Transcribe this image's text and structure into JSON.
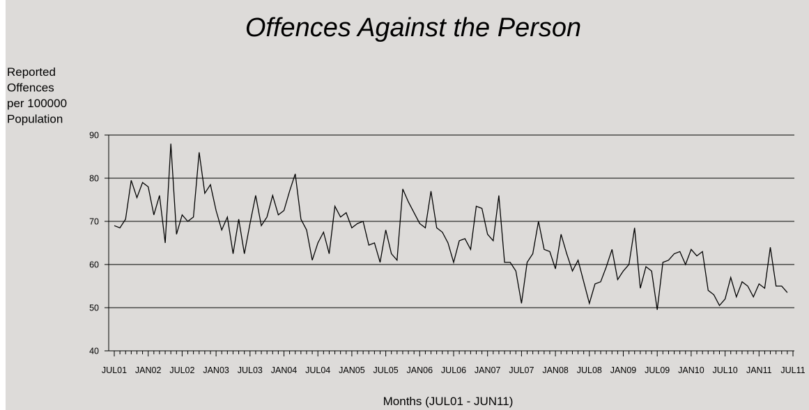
{
  "chart_data": {
    "type": "line",
    "title": "Offences Against the Person",
    "ylabel": [
      "Reported",
      "Offences",
      "per 100000",
      "Population"
    ],
    "xlabel": "Months (JUL01 - JUN11)",
    "ylim": [
      40,
      90
    ],
    "yticks": [
      40,
      50,
      60,
      70,
      80,
      90
    ],
    "grid": true,
    "x_tick_labels": [
      "JUL01",
      "JAN02",
      "JUL02",
      "JAN03",
      "JUL03",
      "JAN04",
      "JUL04",
      "JAN05",
      "JUL05",
      "JAN06",
      "JUL06",
      "JAN07",
      "JUL07",
      "JAN08",
      "JUL08",
      "JAN09",
      "JUL09",
      "JAN10",
      "JUL10",
      "JAN11",
      "JUL11"
    ],
    "colors": {
      "background": "#dddbd9",
      "line": "#000000",
      "grid": "#000000"
    },
    "series": [
      {
        "values": [
          69.0,
          68.5,
          70.5,
          79.5,
          75.5,
          79.0,
          78.0,
          71.5,
          76.0,
          65.0,
          88.0,
          67.0,
          71.5,
          70.0,
          71.0,
          86.0,
          76.5,
          78.5,
          72.5,
          68.0,
          71.0,
          62.5,
          70.5,
          62.5,
          69.5,
          76.0,
          69.0,
          71.0,
          76.0,
          71.5,
          72.5,
          77.0,
          81.0,
          70.5,
          68.0,
          61.0,
          65.0,
          67.5,
          62.5,
          73.5,
          71.0,
          72.0,
          68.5,
          69.5,
          70.0,
          64.5,
          65.0,
          60.5,
          68.0,
          62.5,
          61.0,
          77.5,
          74.5,
          72.0,
          69.5,
          68.5,
          77.0,
          68.5,
          67.5,
          65.0,
          60.5,
          65.5,
          66.0,
          63.5,
          73.5,
          73.0,
          67.0,
          65.5,
          76.0,
          60.5,
          60.5,
          58.5,
          51.0,
          60.5,
          62.5,
          70.0,
          63.5,
          63.0,
          59.0,
          67.0,
          62.5,
          58.5,
          61.0,
          56.0,
          51.0,
          55.5,
          56.0,
          59.5,
          63.5,
          56.5,
          58.5,
          60.0,
          68.5,
          54.5,
          59.5,
          58.5,
          49.5,
          60.5,
          61.0,
          62.5,
          63.0,
          60.0,
          63.5,
          62.0,
          63.0,
          54.0,
          53.0,
          50.5,
          52.0,
          57.0,
          52.5,
          56.0,
          55.0,
          52.5,
          55.5,
          54.5,
          64.0,
          55.0,
          55.0,
          53.5
        ]
      }
    ]
  }
}
